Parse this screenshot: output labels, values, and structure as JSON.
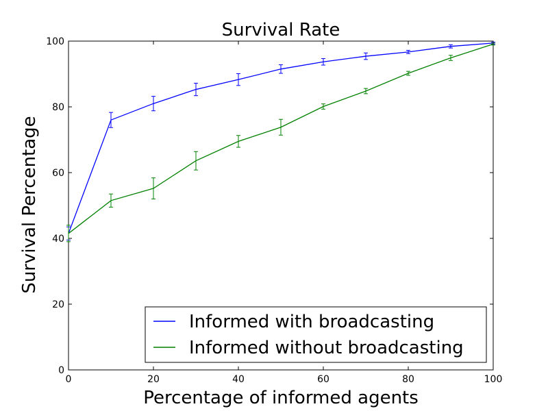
{
  "chart_data": {
    "type": "line",
    "title": "Survival Rate",
    "xlabel": "Percentage of informed agents",
    "ylabel": "Survival Percentage",
    "xlim": [
      0,
      100
    ],
    "ylim": [
      0,
      100
    ],
    "xticks": [
      "0",
      "20",
      "40",
      "60",
      "80",
      "100"
    ],
    "yticks": [
      "0",
      "20",
      "40",
      "60",
      "80",
      "100"
    ],
    "grid": false,
    "legend_position": "lower-right",
    "x": [
      0,
      10,
      20,
      30,
      40,
      50,
      60,
      70,
      80,
      90,
      100
    ],
    "series": [
      {
        "name": "Informed with broadcasting",
        "color": "#0000ff",
        "values": [
          41.5,
          76.0,
          81.0,
          85.3,
          88.3,
          91.5,
          93.7,
          95.4,
          96.7,
          98.4,
          99.4
        ],
        "errors": [
          2.0,
          2.3,
          2.2,
          1.9,
          1.8,
          1.3,
          1.0,
          1.0,
          0.5,
          0.5,
          0.3
        ]
      },
      {
        "name": "Informed without broadcasting",
        "color": "#008000",
        "values": [
          41.5,
          51.5,
          55.2,
          63.6,
          69.5,
          73.8,
          80.1,
          84.8,
          90.2,
          94.9,
          99.1
        ],
        "errors": [
          2.5,
          2.0,
          3.2,
          2.8,
          1.8,
          2.4,
          0.8,
          0.8,
          0.6,
          0.8,
          0.3
        ]
      }
    ]
  }
}
